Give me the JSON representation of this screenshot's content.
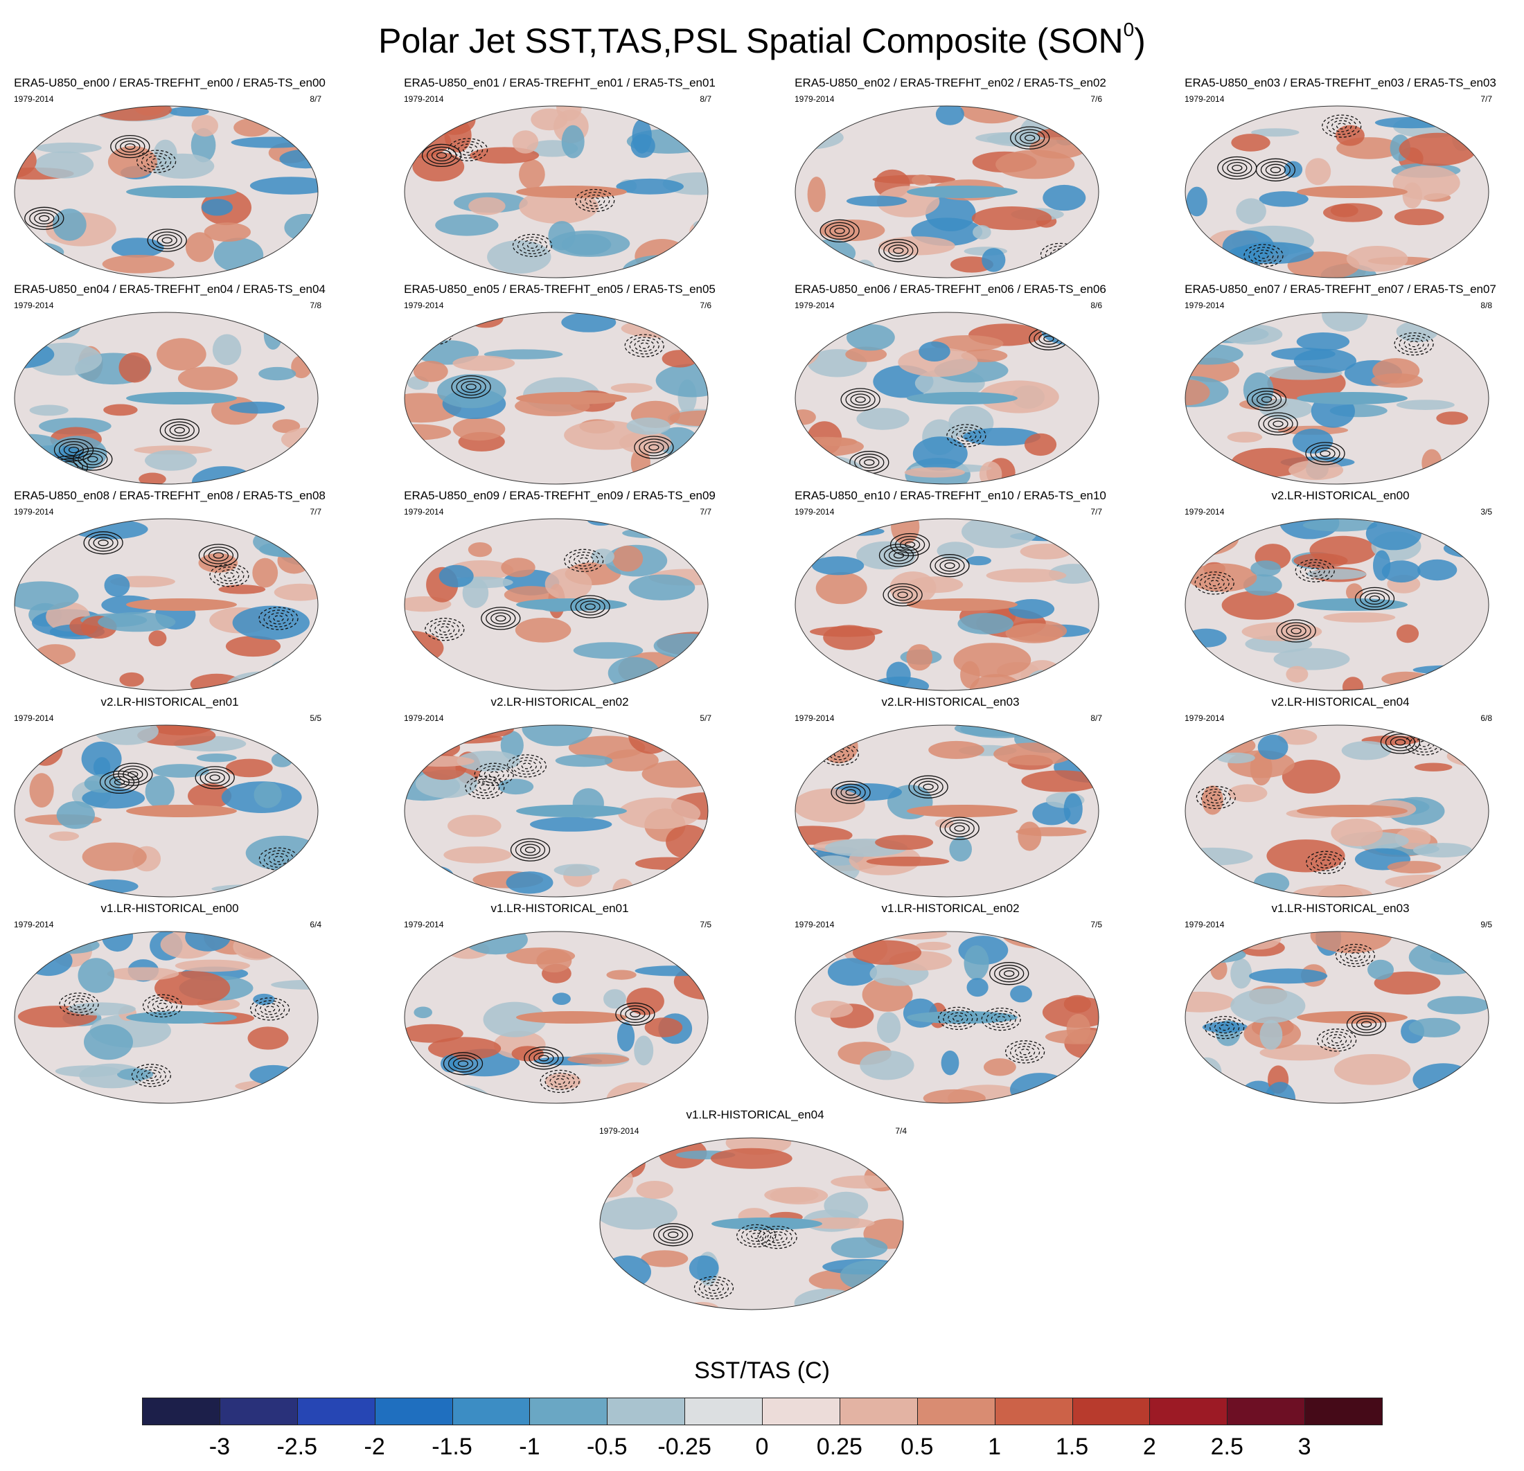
{
  "figure": {
    "title": "Polar Jet SST,TAS,PSL Spatial Composite (SON",
    "title_sup": "0",
    "title_close": ")"
  },
  "panels": [
    {
      "title": "ERA5-U850_en00 / ERA5-TREFHT_en00 / ERA5-TS_en00",
      "years": "1979-2014",
      "ratio": "8/7"
    },
    {
      "title": "ERA5-U850_en01 / ERA5-TREFHT_en01 / ERA5-TS_en01",
      "years": "1979-2014",
      "ratio": "8/7"
    },
    {
      "title": "ERA5-U850_en02 / ERA5-TREFHT_en02 / ERA5-TS_en02",
      "years": "1979-2014",
      "ratio": "7/6"
    },
    {
      "title": "ERA5-U850_en03 / ERA5-TREFHT_en03 / ERA5-TS_en03",
      "years": "1979-2014",
      "ratio": "7/7"
    },
    {
      "title": "ERA5-U850_en04 / ERA5-TREFHT_en04 / ERA5-TS_en04",
      "years": "1979-2014",
      "ratio": "7/8"
    },
    {
      "title": "ERA5-U850_en05 / ERA5-TREFHT_en05 / ERA5-TS_en05",
      "years": "1979-2014",
      "ratio": "7/6"
    },
    {
      "title": "ERA5-U850_en06 / ERA5-TREFHT_en06 / ERA5-TS_en06",
      "years": "1979-2014",
      "ratio": "8/6"
    },
    {
      "title": "ERA5-U850_en07 / ERA5-TREFHT_en07 / ERA5-TS_en07",
      "years": "1979-2014",
      "ratio": "8/8"
    },
    {
      "title": "ERA5-U850_en08 / ERA5-TREFHT_en08 / ERA5-TS_en08",
      "years": "1979-2014",
      "ratio": "7/7"
    },
    {
      "title": "ERA5-U850_en09 / ERA5-TREFHT_en09 / ERA5-TS_en09",
      "years": "1979-2014",
      "ratio": "7/7"
    },
    {
      "title": "ERA5-U850_en10 / ERA5-TREFHT_en10 / ERA5-TS_en10",
      "years": "1979-2014",
      "ratio": "7/7"
    },
    {
      "title": "v2.LR-HISTORICAL_en00",
      "years": "1979-2014",
      "ratio": "3/5"
    },
    {
      "title": "v2.LR-HISTORICAL_en01",
      "years": "1979-2014",
      "ratio": "5/5"
    },
    {
      "title": "v2.LR-HISTORICAL_en02",
      "years": "1979-2014",
      "ratio": "5/7"
    },
    {
      "title": "v2.LR-HISTORICAL_en03",
      "years": "1979-2014",
      "ratio": "8/7"
    },
    {
      "title": "v2.LR-HISTORICAL_en04",
      "years": "1979-2014",
      "ratio": "6/8"
    },
    {
      "title": "v1.LR-HISTORICAL_en00",
      "years": "1979-2014",
      "ratio": "6/4"
    },
    {
      "title": "v1.LR-HISTORICAL_en01",
      "years": "1979-2014",
      "ratio": "7/5"
    },
    {
      "title": "v1.LR-HISTORICAL_en02",
      "years": "1979-2014",
      "ratio": "7/5"
    },
    {
      "title": "v1.LR-HISTORICAL_en03",
      "years": "1979-2014",
      "ratio": "9/5"
    },
    {
      "title": "v1.LR-HISTORICAL_en04",
      "years": "1979-2014",
      "ratio": "7/4"
    }
  ],
  "colorbar": {
    "title": "SST/TAS (C)",
    "labels": [
      "-3",
      "-2.5",
      "-2",
      "-1.5",
      "-1",
      "-0.5",
      "-0.25",
      "0",
      "0.25",
      "0.5",
      "1",
      "1.5",
      "2",
      "2.5",
      "3"
    ],
    "colors": [
      "#1c1f4a",
      "#29317a",
      "#2646b4",
      "#1f6fbf",
      "#3c8dc4",
      "#6aa7c4",
      "#a9c3cf",
      "#dcdfe1",
      "#ecdcd9",
      "#e3b3a3",
      "#d98c72",
      "#cc6248",
      "#b83b2d",
      "#9c1a25",
      "#6d0f24",
      "#450a18"
    ]
  }
}
